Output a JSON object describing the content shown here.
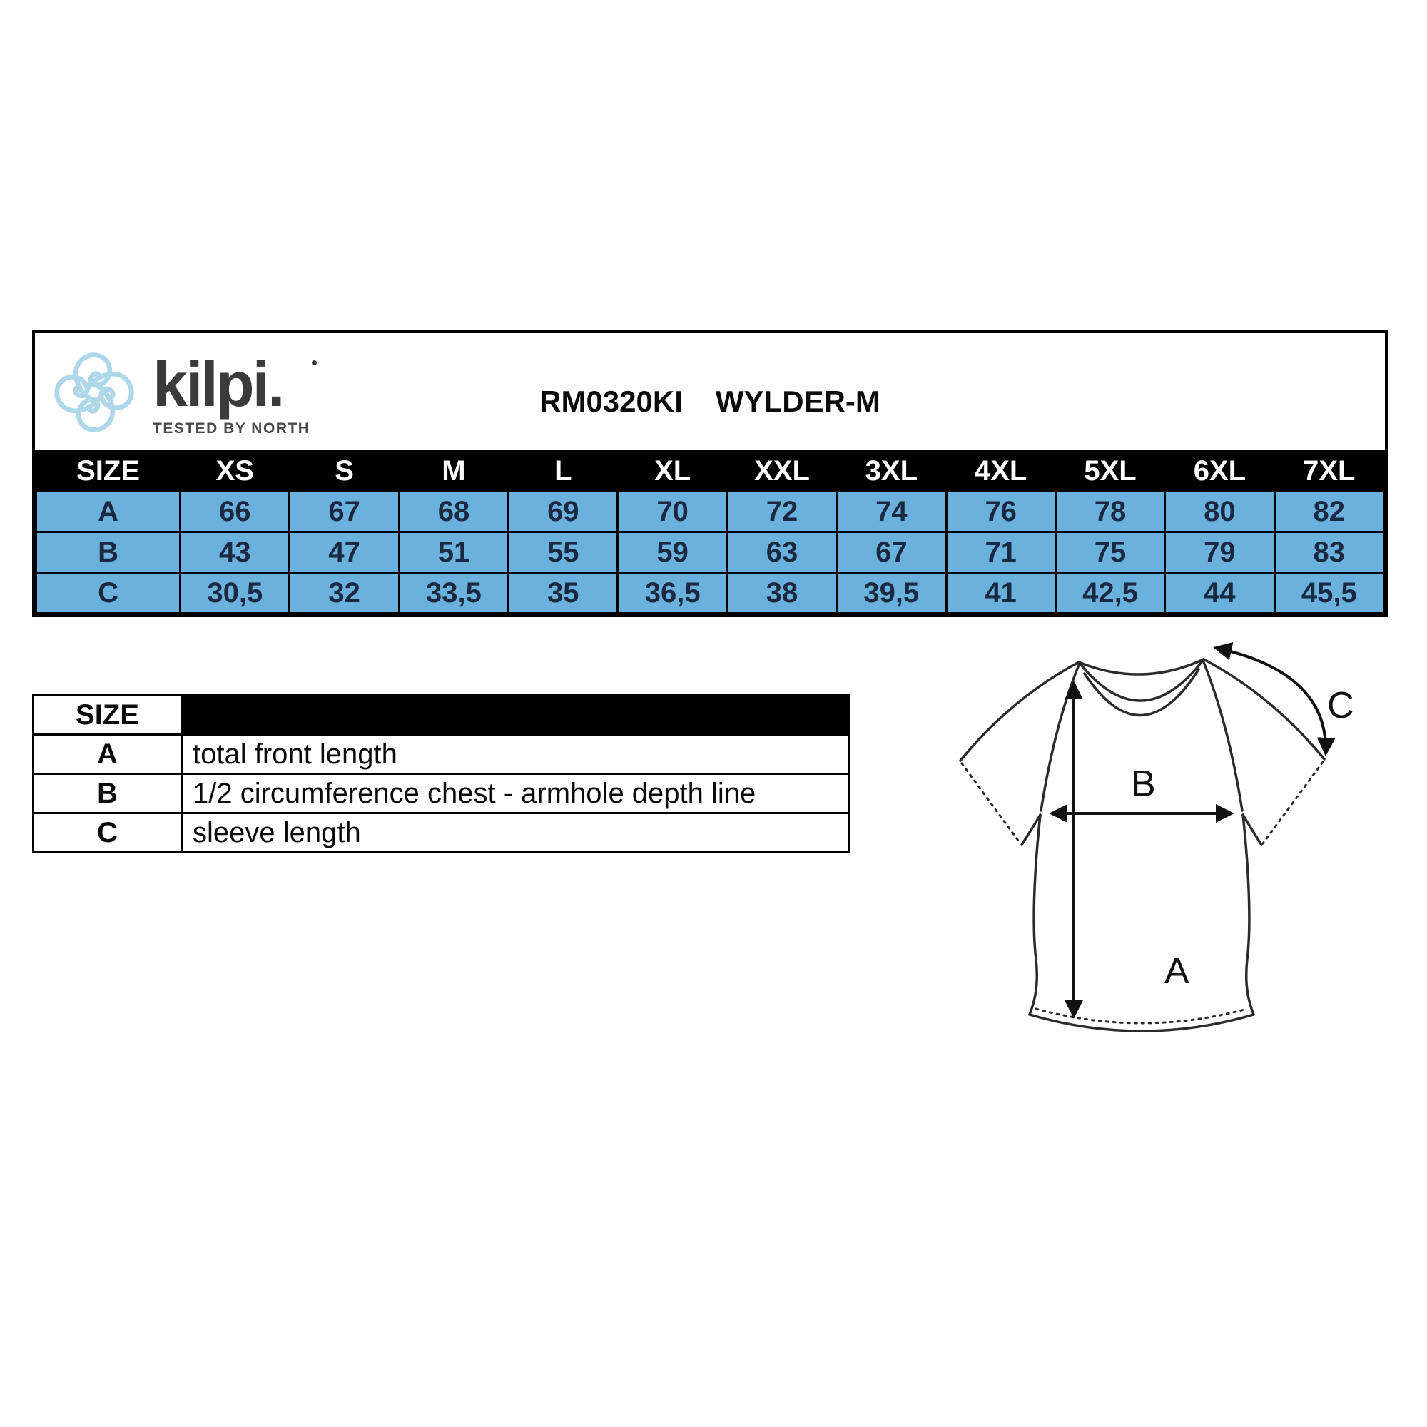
{
  "brand": {
    "name": "kilpi.",
    "tagline": "TESTED BY NORTH",
    "logo_icon": "kilpi-knot-icon",
    "logo_color": "#aed8ea",
    "text_color": "#3b3b3b"
  },
  "header": {
    "product_code": "RM0320KI",
    "product_name": "WYLDER-M"
  },
  "size_table": {
    "corner_label": "SIZE",
    "sizes": [
      "XS",
      "S",
      "M",
      "L",
      "XL",
      "XXL",
      "3XL",
      "4XL",
      "5XL",
      "6XL",
      "7XL"
    ],
    "rows": [
      {
        "label": "A",
        "values": [
          "66",
          "67",
          "68",
          "69",
          "70",
          "72",
          "74",
          "76",
          "78",
          "80",
          "82"
        ]
      },
      {
        "label": "B",
        "values": [
          "43",
          "47",
          "51",
          "55",
          "59",
          "63",
          "67",
          "71",
          "75",
          "79",
          "83"
        ]
      },
      {
        "label": "C",
        "values": [
          "30,5",
          "32",
          "33,5",
          "35",
          "36,5",
          "38",
          "39,5",
          "41",
          "42,5",
          "44",
          "45,5"
        ]
      }
    ],
    "header_bg": "#000000",
    "header_text_color": "#ffffff",
    "row_bg": "#6ab2dd",
    "cell_text_color": "#1a2840"
  },
  "legend": {
    "header": "SIZE",
    "rows": [
      {
        "label": "A",
        "description": "total front length"
      },
      {
        "label": "B",
        "description": "1/2 circumference chest - armhole depth line"
      },
      {
        "label": "C",
        "description": "sleeve length"
      }
    ]
  },
  "diagram": {
    "type": "t-shirt measurement diagram",
    "labels": {
      "a": "A",
      "b": "B",
      "c": "C"
    }
  },
  "chart_data": {
    "type": "table",
    "title": "RM0320KI WYLDER-M",
    "categories": [
      "XS",
      "S",
      "M",
      "L",
      "XL",
      "XXL",
      "3XL",
      "4XL",
      "5XL",
      "6XL",
      "7XL"
    ],
    "series": [
      {
        "name": "A - total front length",
        "values": [
          66,
          67,
          68,
          69,
          70,
          72,
          74,
          76,
          78,
          80,
          82
        ]
      },
      {
        "name": "B - 1/2 circumference chest - armhole depth line",
        "values": [
          43,
          47,
          51,
          55,
          59,
          63,
          67,
          71,
          75,
          79,
          83
        ]
      },
      {
        "name": "C - sleeve length",
        "values": [
          30.5,
          32,
          33.5,
          35,
          36.5,
          38,
          39.5,
          41,
          42.5,
          44,
          45.5
        ]
      }
    ]
  }
}
